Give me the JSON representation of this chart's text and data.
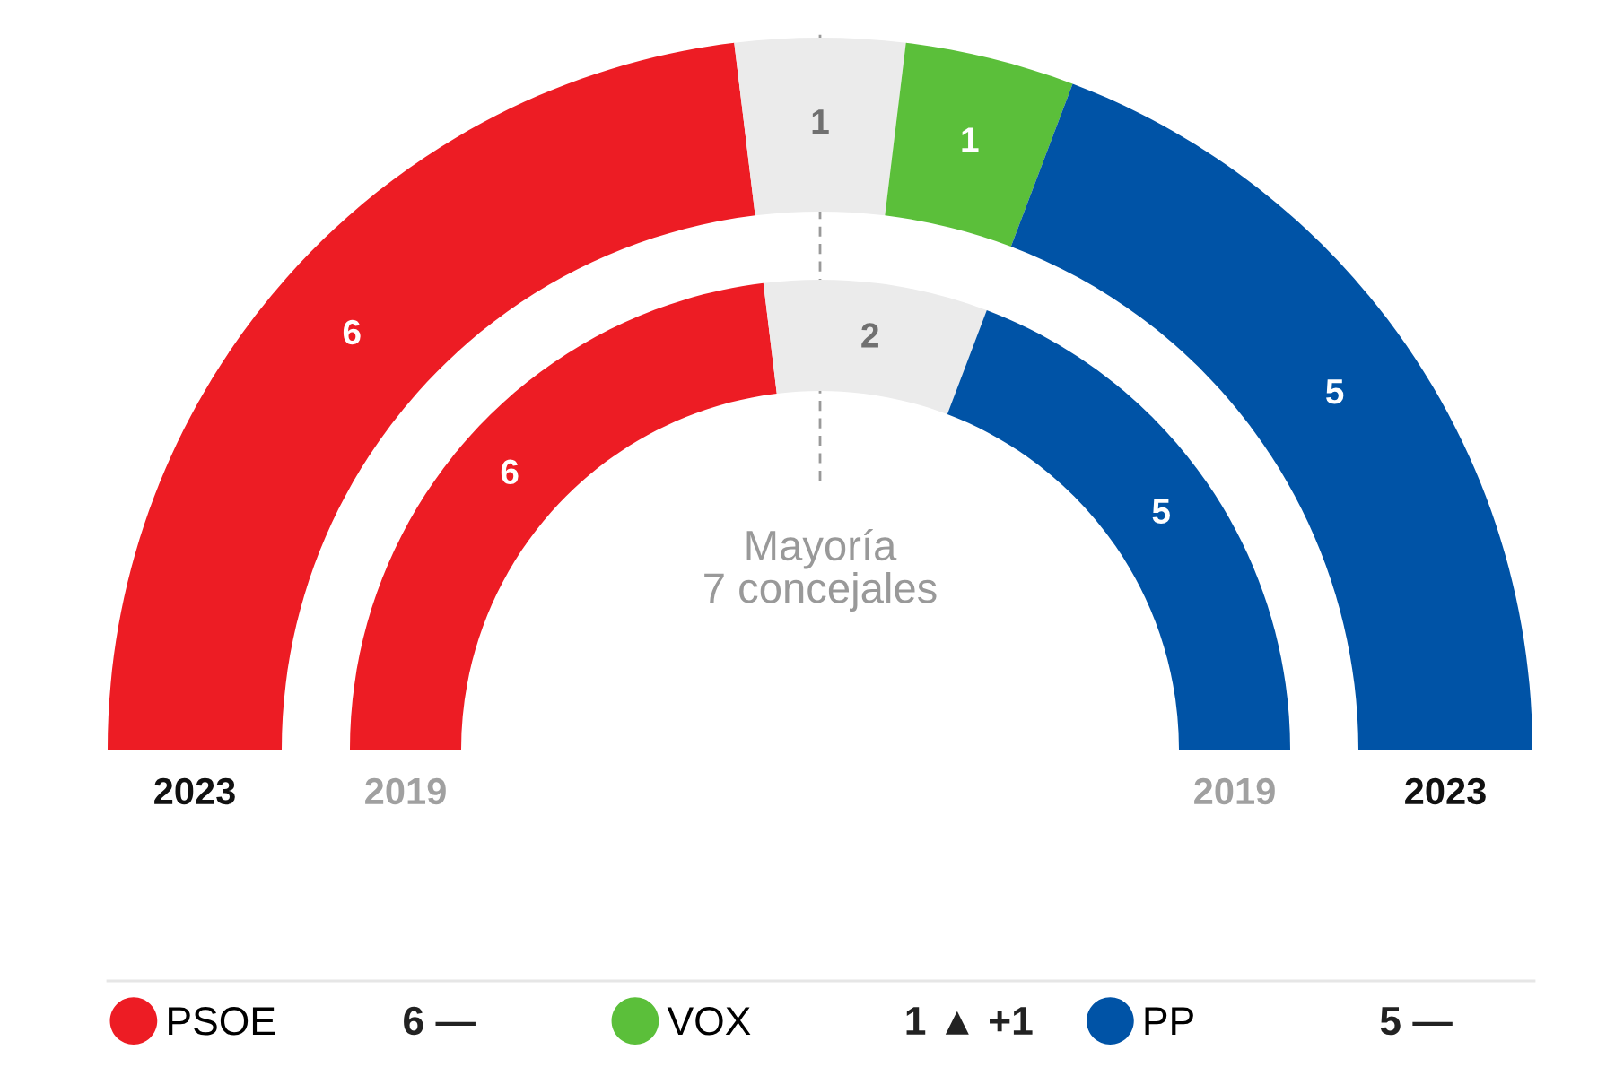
{
  "chart_data": {
    "type": "donut",
    "categories": [
      "PSOE",
      null,
      "VOX",
      "PP"
    ],
    "colors": [
      "#ed1c24",
      "#ebebeb",
      "#5bbf3a",
      "#0053a6"
    ],
    "data_labels": true,
    "legend": "bottom",
    "series": [
      {
        "name": "2023",
        "values": [
          6,
          1,
          1,
          5
        ]
      },
      {
        "name": "2019",
        "values": [
          6,
          2,
          null,
          5
        ]
      }
    ],
    "annotations": [
      "Mayoría\n7 concejales",
      "6 —",
      "1 ▲ +1",
      "5 —"
    ]
  }
}
